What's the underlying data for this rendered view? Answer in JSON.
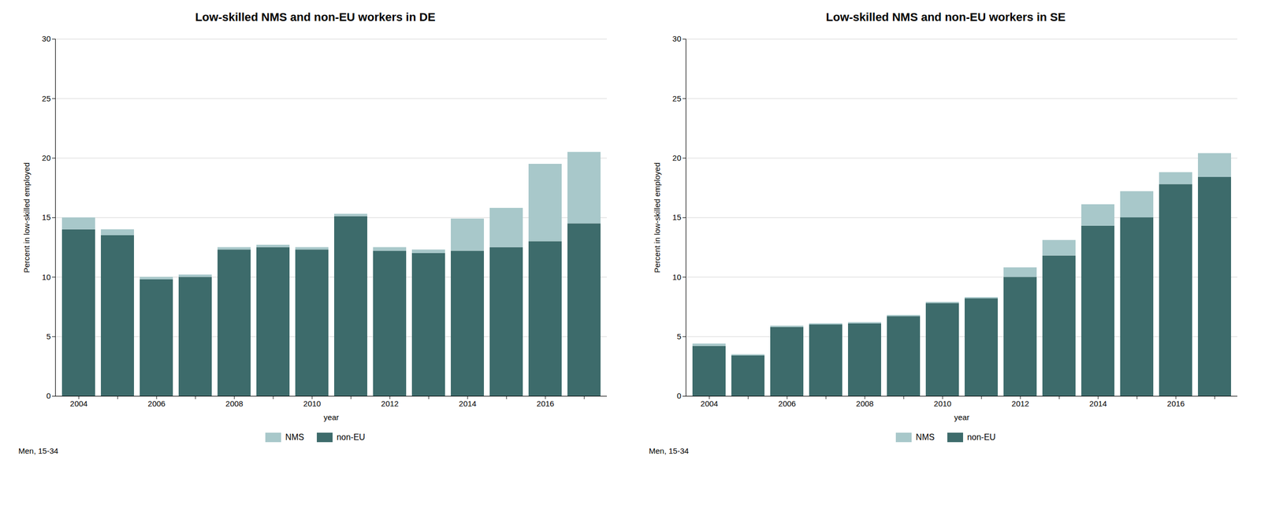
{
  "chart_data": [
    {
      "type": "bar",
      "stacked": true,
      "title": "Low-skilled NMS and non-EU workers in DE",
      "subtitle": "Men, 15-34",
      "xlabel": "year",
      "ylabel": "Percent in low-skilled employed",
      "categories": [
        "2004",
        null,
        "2006",
        null,
        "2008",
        null,
        "2010",
        null,
        "2012",
        null,
        "2014",
        null,
        "2016",
        null
      ],
      "series": [
        {
          "name": "non-EU",
          "color": "#3d6b6b",
          "values": [
            14.0,
            13.5,
            9.8,
            10.0,
            12.3,
            12.5,
            12.3,
            15.1,
            12.2,
            12.0,
            12.2,
            12.5,
            13.0,
            14.5
          ]
        },
        {
          "name": "NMS",
          "color": "#a8c8ca",
          "values": [
            1.0,
            0.5,
            0.2,
            0.2,
            0.2,
            0.2,
            0.2,
            0.2,
            0.3,
            0.3,
            2.7,
            3.3,
            6.5,
            6.0
          ]
        }
      ],
      "ylim": [
        0,
        30
      ],
      "yticks": [
        0,
        5,
        10,
        15,
        20,
        25,
        30
      ],
      "grid": true,
      "legend": "bottom"
    },
    {
      "type": "bar",
      "stacked": true,
      "title": "Low-skilled NMS and non-EU workers in SE",
      "subtitle": "Men, 15-34",
      "xlabel": "year",
      "ylabel": "Percent in low-skilled employed",
      "categories": [
        "2004",
        null,
        "2006",
        null,
        "2008",
        null,
        "2010",
        null,
        "2012",
        null,
        "2014",
        null,
        "2016",
        null
      ],
      "series": [
        {
          "name": "non-EU",
          "color": "#3d6b6b",
          "values": [
            4.2,
            3.4,
            5.8,
            6.0,
            6.1,
            6.7,
            7.8,
            8.2,
            10.0,
            11.8,
            14.3,
            15.0,
            17.8,
            18.4
          ]
        },
        {
          "name": "NMS",
          "color": "#a8c8ca",
          "values": [
            0.2,
            0.1,
            0.1,
            0.1,
            0.1,
            0.1,
            0.1,
            0.1,
            0.8,
            1.3,
            1.8,
            2.2,
            1.0,
            2.0
          ]
        }
      ],
      "ylim": [
        0,
        30
      ],
      "yticks": [
        0,
        5,
        10,
        15,
        20,
        25,
        30
      ],
      "grid": true,
      "legend": "bottom"
    }
  ]
}
